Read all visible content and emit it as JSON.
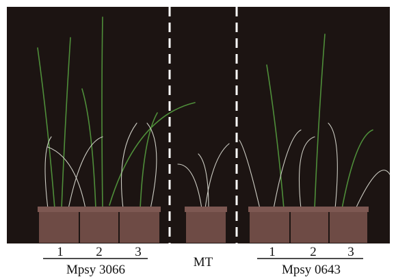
{
  "groups": [
    {
      "numbers": [
        "1",
        "2",
        "3"
      ],
      "name": "Mpsy 3066"
    },
    {
      "name": "MT"
    },
    {
      "numbers": [
        "1",
        "2",
        "3"
      ],
      "name": "Mpsy 0643"
    }
  ]
}
